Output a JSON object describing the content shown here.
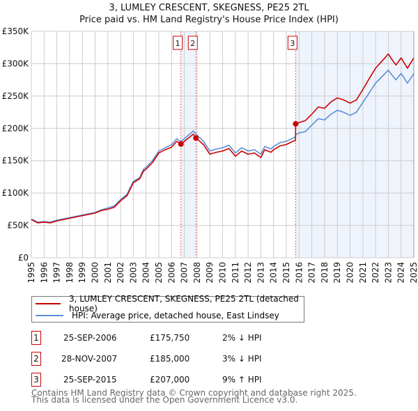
{
  "chart_data": {
    "type": "line",
    "title": "3, LUMLEY CRESCENT, SKEGNESS, PE25 2TL",
    "subtitle": "Price paid vs. HM Land Registry's House Price Index (HPI)",
    "xlim": [
      1995,
      2025
    ],
    "ylim": [
      0,
      350000
    ],
    "y_ticks": [
      0,
      50000,
      100000,
      150000,
      200000,
      250000,
      300000,
      350000
    ],
    "y_tick_labels": [
      "£0",
      "£50K",
      "£100K",
      "£150K",
      "£200K",
      "£250K",
      "£300K",
      "£350K"
    ],
    "x_tick_labels": [
      "1995",
      "1996",
      "1997",
      "1998",
      "1999",
      "2000",
      "2001",
      "2002",
      "2003",
      "2004",
      "2005",
      "2006",
      "2007",
      "2008",
      "2009",
      "2010",
      "2011",
      "2012",
      "2013",
      "2014",
      "2015",
      "2016",
      "2017",
      "2018",
      "2019",
      "2020",
      "2021",
      "2022",
      "2023",
      "2024",
      "2025"
    ],
    "grid": true,
    "x": [
      1995.0,
      1995.5,
      1996.0,
      1996.5,
      1997.0,
      1998.0,
      1999.0,
      2000.0,
      2000.5,
      2001.0,
      2001.5,
      2002.0,
      2002.5,
      2003.0,
      2003.5,
      2003.8,
      2004.0,
      2004.5,
      2005.0,
      2005.5,
      2006.0,
      2006.4,
      2006.73,
      2007.0,
      2007.7,
      2007.91,
      2008.5,
      2009.0,
      2009.5,
      2010.0,
      2010.5,
      2011.0,
      2011.5,
      2012.0,
      2012.5,
      2013.0,
      2013.3,
      2013.8,
      2014.0,
      2014.5,
      2015.0,
      2015.5,
      2015.72,
      2015.73,
      2016.0,
      2016.5,
      2017.0,
      2017.5,
      2018.0,
      2018.5,
      2019.0,
      2019.5,
      2020.0,
      2020.5,
      2021.0,
      2021.5,
      2022.0,
      2022.5,
      2023.0,
      2023.3,
      2023.6,
      2024.0,
      2024.5,
      2025.0
    ],
    "series": [
      {
        "name": "3, LUMLEY CRESCENT, SKEGNESS, PE25 2TL (detached house)",
        "color": "#cc0000",
        "values": [
          59,
          54,
          55,
          54,
          57,
          61,
          65,
          69,
          73,
          75,
          78,
          88,
          96,
          116,
          122,
          134,
          137,
          147,
          162,
          167,
          171,
          180,
          175.75,
          180,
          191,
          185,
          175,
          160,
          163,
          165,
          169,
          157,
          165,
          160,
          162,
          155,
          167,
          163,
          167,
          173,
          175,
          180,
          181,
          207,
          209,
          212,
          222,
          233,
          231,
          241,
          247,
          244,
          239,
          244,
          260,
          277,
          293,
          304,
          315,
          306,
          298,
          309,
          293,
          309
        ]
      },
      {
        "name": "HPI: Average price, detached house, East Lindsey",
        "color": "#5b8fd6",
        "values": [
          60,
          55,
          56,
          55,
          58,
          62,
          66,
          70,
          74,
          77,
          80,
          90,
          98,
          118,
          124,
          137,
          140,
          150,
          165,
          170,
          175,
          184,
          179,
          184,
          196,
          191,
          180,
          165,
          168,
          170,
          174,
          162,
          170,
          165,
          167,
          160,
          172,
          168,
          172,
          178,
          180,
          185,
          187,
          190,
          193,
          195,
          205,
          215,
          213,
          222,
          228,
          225,
          220,
          225,
          240,
          255,
          270,
          280,
          290,
          282,
          275,
          285,
          270,
          285
        ]
      }
    ],
    "value_unit": "thousand GBP",
    "shaded_ranges": [
      [
        2006.73,
        2007.91
      ],
      [
        2015.73,
        2025
      ]
    ],
    "sales": [
      {
        "id": "1",
        "x": 2006.73,
        "price": 175750,
        "date": "25-SEP-2006",
        "price_label": "£175,750",
        "hpi_label": "2% ↓ HPI"
      },
      {
        "id": "2",
        "x": 2007.91,
        "price": 185000,
        "date": "28-NOV-2007",
        "price_label": "£185,000",
        "hpi_label": "3% ↓ HPI"
      },
      {
        "id": "3",
        "x": 2015.73,
        "price": 207000,
        "date": "25-SEP-2015",
        "price_label": "£207,000",
        "hpi_label": "9% ↑ HPI"
      }
    ],
    "legend_position": "below"
  },
  "footer": {
    "line1": "Contains HM Land Registry data © Crown copyright and database right 2025.",
    "line2": "This data is licensed under the Open Government Licence v3.0."
  }
}
